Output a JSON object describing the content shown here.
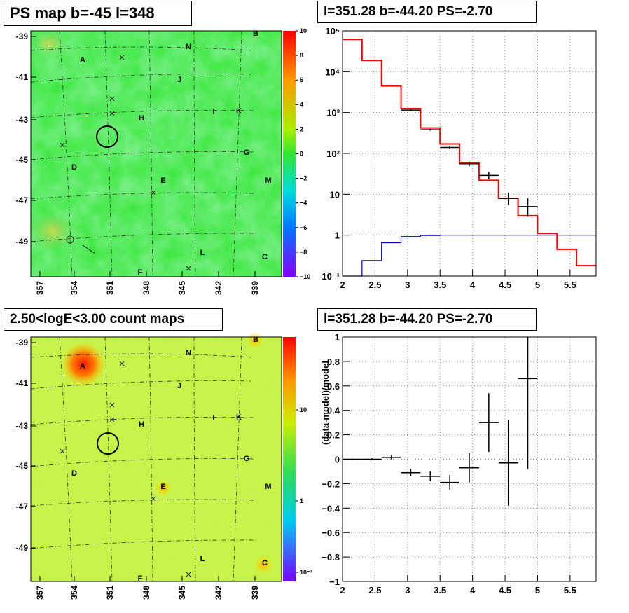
{
  "panels": {
    "ps_map": {
      "title": "PS map b=-45 l=348",
      "y_ticks": [
        "-39",
        "-41",
        "-43",
        "-45",
        "-47",
        "-49"
      ],
      "x_ticks": [
        "357",
        "354",
        "351",
        "348",
        "345",
        "342",
        "339"
      ],
      "colorbar_ticks": [
        "10",
        "8",
        "6",
        "4",
        "2",
        "0",
        "−2",
        "−4",
        "−6",
        "−8",
        "−10"
      ],
      "source_labels": [
        "A",
        "B",
        "N",
        "J",
        "H",
        "I",
        "K",
        "G",
        "D",
        "E",
        "M",
        "L",
        "C",
        "F"
      ]
    },
    "count_map": {
      "title": "2.50<logE<3.00 count maps",
      "y_ticks": [
        "-39",
        "-41",
        "-43",
        "-45",
        "-47",
        "-49"
      ],
      "x_ticks": [
        "357",
        "354",
        "351",
        "348",
        "345",
        "342",
        "339"
      ],
      "colorbar_ticks": [
        "10",
        "1",
        "10⁻¹"
      ],
      "source_labels": [
        "A",
        "B",
        "N",
        "J",
        "H",
        "I",
        "K",
        "G",
        "D",
        "E",
        "M",
        "L",
        "C",
        "F"
      ]
    }
  },
  "colors": {
    "data": "#000000",
    "model": "#ff0000",
    "background_model": "#0000cc",
    "ps_map_base": "#33e633",
    "count_map_base": "#c8f028"
  },
  "chart_data": [
    {
      "type": "line",
      "title": "l=351.28 b=-44.20 PS=-2.70",
      "xlabel": "",
      "ylabel": "",
      "xlim": [
        2,
        5.9
      ],
      "ylim": [
        0.1,
        100000
      ],
      "yscale": "log",
      "grid": true,
      "x_ticks": [
        "2",
        "2.5",
        "3",
        "3.5",
        "4",
        "4.5",
        "5",
        "5.5"
      ],
      "y_ticks": [
        "10⁻¹",
        "1",
        "10",
        "10²",
        "10³",
        "10⁴",
        "10⁵"
      ],
      "bin_edges": [
        2.0,
        2.3,
        2.6,
        2.9,
        3.2,
        3.5,
        3.8,
        4.1,
        4.4,
        4.7,
        5.0,
        5.3,
        5.6,
        5.9
      ],
      "model_values": [
        62000,
        19000,
        4500,
        1250,
        420,
        170,
        60,
        22,
        8,
        3,
        1.1,
        0.45,
        0.18
      ],
      "background_values": [
        0.08,
        0.24,
        0.65,
        0.92,
        0.98,
        1.0,
        1.0,
        1.0,
        1.0,
        1.0,
        1.0,
        1.0,
        1.0
      ],
      "data_points": [
        {
          "x": 3.05,
          "y": 1150,
          "xerr": 0.15,
          "ylo": 1100,
          "yhi": 1200
        },
        {
          "x": 3.35,
          "y": 380,
          "xerr": 0.15,
          "ylo": 360,
          "yhi": 400
        },
        {
          "x": 3.65,
          "y": 140,
          "xerr": 0.15,
          "ylo": 128,
          "yhi": 152
        },
        {
          "x": 3.95,
          "y": 56,
          "xerr": 0.15,
          "ylo": 49,
          "yhi": 63
        },
        {
          "x": 4.25,
          "y": 29,
          "xerr": 0.15,
          "ylo": 23,
          "yhi": 35
        },
        {
          "x": 4.55,
          "y": 8,
          "xerr": 0.15,
          "ylo": 5.5,
          "yhi": 11
        },
        {
          "x": 4.85,
          "y": 5,
          "xerr": 0.15,
          "ylo": 2.8,
          "yhi": 8
        }
      ]
    },
    {
      "type": "scatter",
      "title": "l=351.28 b=-44.20 PS=-2.70",
      "xlabel": "",
      "ylabel": "(data-model)/model",
      "xlim": [
        2,
        5.9
      ],
      "ylim": [
        -1,
        1
      ],
      "grid": true,
      "x_ticks": [
        "2",
        "2.5",
        "3",
        "3.5",
        "4",
        "4.5",
        "5",
        "5.5"
      ],
      "y_ticks": [
        "−1",
        "−0.8",
        "−0.6",
        "−0.4",
        "−0.2",
        "0",
        "0.2",
        "0.4",
        "0.6",
        "0.8",
        "1"
      ],
      "points": [
        {
          "x": 2.15,
          "y": 0.0,
          "xerr": 0.15,
          "ylo": -0.005,
          "yhi": 0.005
        },
        {
          "x": 2.45,
          "y": 0.0,
          "xerr": 0.15,
          "ylo": -0.008,
          "yhi": 0.008
        },
        {
          "x": 2.75,
          "y": 0.015,
          "xerr": 0.15,
          "ylo": 0.0,
          "yhi": 0.03
        },
        {
          "x": 3.05,
          "y": -0.11,
          "xerr": 0.15,
          "ylo": -0.14,
          "yhi": -0.08
        },
        {
          "x": 3.35,
          "y": -0.14,
          "xerr": 0.15,
          "ylo": -0.18,
          "yhi": -0.1
        },
        {
          "x": 3.65,
          "y": -0.19,
          "xerr": 0.15,
          "ylo": -0.25,
          "yhi": -0.13
        },
        {
          "x": 3.95,
          "y": -0.07,
          "xerr": 0.15,
          "ylo": -0.19,
          "yhi": 0.05
        },
        {
          "x": 4.25,
          "y": 0.3,
          "xerr": 0.15,
          "ylo": 0.06,
          "yhi": 0.54
        },
        {
          "x": 4.55,
          "y": -0.03,
          "xerr": 0.15,
          "ylo": -0.38,
          "yhi": 0.32
        },
        {
          "x": 4.85,
          "y": 0.66,
          "xerr": 0.15,
          "ylo": -0.08,
          "yhi": 1.0
        }
      ]
    }
  ]
}
